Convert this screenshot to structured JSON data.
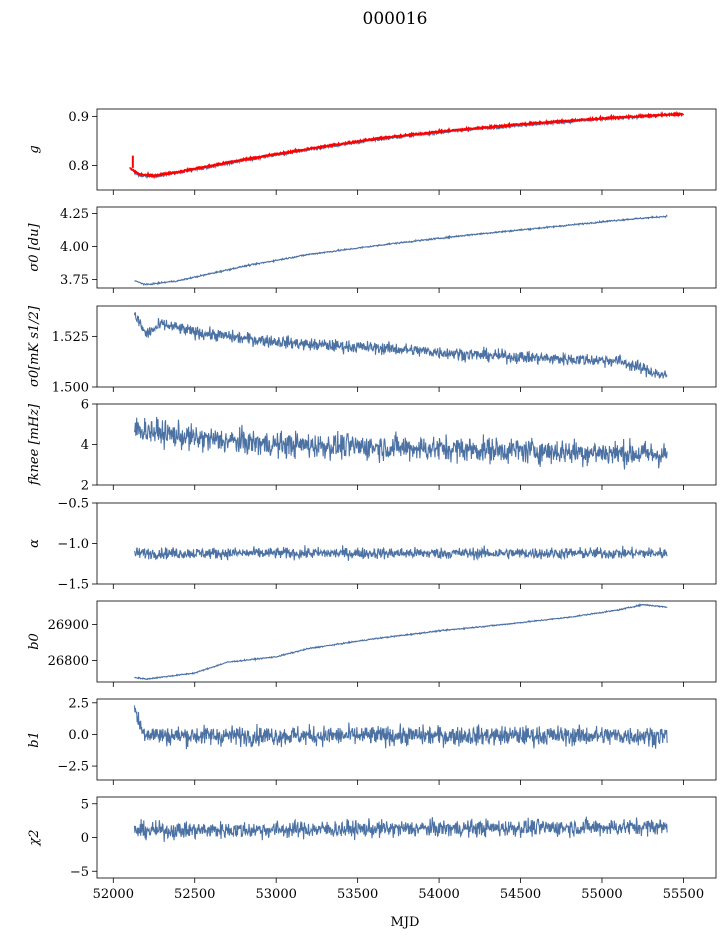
{
  "title": "000016",
  "chart_data": {
    "type": "line",
    "xlabel": "MJD",
    "xlim": [
      51900,
      55700
    ],
    "xticks": [
      52000,
      52500,
      53000,
      53500,
      54000,
      54500,
      55000,
      55500
    ],
    "x_range_data": [
      52130,
      55400
    ],
    "line_color": "#4c72a4",
    "overlay_color": "#ff0000",
    "panels": [
      {
        "ylabel": "g",
        "ylim": [
          0.75,
          0.915
        ],
        "yticks": [
          0.8,
          0.9
        ],
        "ytick_labels": [
          "0.8",
          "0.9"
        ],
        "shape": [
          [
            52100,
            0.79
          ],
          [
            52160,
            0.78
          ],
          [
            52240,
            0.777
          ],
          [
            52400,
            0.785
          ],
          [
            52800,
            0.81
          ],
          [
            53200,
            0.832
          ],
          [
            53600,
            0.852
          ],
          [
            54000,
            0.867
          ],
          [
            54500,
            0.882
          ],
          [
            55000,
            0.894
          ],
          [
            55400,
            0.903
          ]
        ],
        "noise": 0.002,
        "overlay": {
          "shape": [
            [
              52100,
              0.795
            ],
            [
              52160,
              0.782
            ],
            [
              52240,
              0.779
            ],
            [
              52400,
              0.787
            ],
            [
              52800,
              0.812
            ],
            [
              53200,
              0.834
            ],
            [
              53600,
              0.854
            ],
            [
              54000,
              0.869
            ],
            [
              54500,
              0.884
            ],
            [
              55000,
              0.896
            ],
            [
              55500,
              0.905
            ]
          ],
          "spike": [
            52120,
            0.82
          ]
        }
      },
      {
        "ylabel": "σ0 [du]",
        "ylim": [
          3.685,
          4.3
        ],
        "yticks": [
          3.75,
          4.0,
          4.25
        ],
        "ytick_labels": [
          "3.75",
          "4.00",
          "4.25"
        ],
        "shape": [
          [
            52130,
            3.74
          ],
          [
            52200,
            3.71
          ],
          [
            52400,
            3.74
          ],
          [
            52800,
            3.85
          ],
          [
            53200,
            3.94
          ],
          [
            53700,
            4.02
          ],
          [
            54200,
            4.09
          ],
          [
            54700,
            4.15
          ],
          [
            55100,
            4.2
          ],
          [
            55400,
            4.23
          ]
        ],
        "noise": 0.004
      },
      {
        "ylabel": "σ0[mK s1/2]",
        "ylim": [
          1.5,
          1.54
        ],
        "yticks": [
          1.5,
          1.525
        ],
        "ytick_labels": [
          "1.500",
          "1.525"
        ],
        "shape": [
          [
            52130,
            1.536
          ],
          [
            52200,
            1.526
          ],
          [
            52300,
            1.531
          ],
          [
            52500,
            1.527
          ],
          [
            52800,
            1.524
          ],
          [
            53200,
            1.521
          ],
          [
            53700,
            1.519
          ],
          [
            54200,
            1.516
          ],
          [
            54700,
            1.514
          ],
          [
            55100,
            1.513
          ],
          [
            55400,
            1.505
          ]
        ],
        "noise": 0.0022
      },
      {
        "ylabel": "fknee [mHz]",
        "ylim": [
          2,
          6
        ],
        "yticks": [
          2,
          4,
          6
        ],
        "ytick_labels": [
          "2",
          "4",
          "6"
        ],
        "shape": [
          [
            52130,
            4.8
          ],
          [
            52500,
            4.3
          ],
          [
            53000,
            4.0
          ],
          [
            54000,
            3.8
          ],
          [
            55000,
            3.6
          ],
          [
            55400,
            3.5
          ]
        ],
        "noise": 0.45
      },
      {
        "ylabel": "α",
        "ylim": [
          -1.5,
          -0.5
        ],
        "yticks": [
          -1.5,
          -1.0,
          -0.5
        ],
        "ytick_labels": [
          "−1.5",
          "−1.0",
          "−0.5"
        ],
        "shape": [
          [
            52130,
            -1.12
          ],
          [
            55400,
            -1.12
          ]
        ],
        "noise": 0.05
      },
      {
        "ylabel": "b0",
        "ylim": [
          26740,
          26965
        ],
        "yticks": [
          26800,
          26900
        ],
        "ytick_labels": [
          "26800",
          "26900"
        ],
        "shape": [
          [
            52130,
            26753
          ],
          [
            52200,
            26748
          ],
          [
            52500,
            26765
          ],
          [
            52700,
            26795
          ],
          [
            53000,
            26810
          ],
          [
            53200,
            26833
          ],
          [
            53600,
            26860
          ],
          [
            54000,
            26882
          ],
          [
            54400,
            26900
          ],
          [
            54800,
            26920
          ],
          [
            55100,
            26940
          ],
          [
            55250,
            26955
          ],
          [
            55400,
            26948
          ]
        ],
        "noise": 1.2
      },
      {
        "ylabel": "b1",
        "ylim": [
          -3.6,
          2.8
        ],
        "yticks": [
          -2.5,
          0.0,
          2.5
        ],
        "ytick_labels": [
          "−2.5",
          "0.0",
          "2.5"
        ],
        "shape": [
          [
            52130,
            2.0
          ],
          [
            52180,
            0.2
          ],
          [
            52300,
            -0.1
          ],
          [
            55400,
            -0.1
          ]
        ],
        "noise": 0.55
      },
      {
        "ylabel": "χ2",
        "ylim": [
          -6,
          6
        ],
        "yticks": [
          -5,
          0,
          5
        ],
        "ytick_labels": [
          "−5",
          "0",
          "5"
        ],
        "shape": [
          [
            52130,
            1.0
          ],
          [
            55400,
            1.6
          ]
        ],
        "noise": 0.9
      }
    ]
  }
}
